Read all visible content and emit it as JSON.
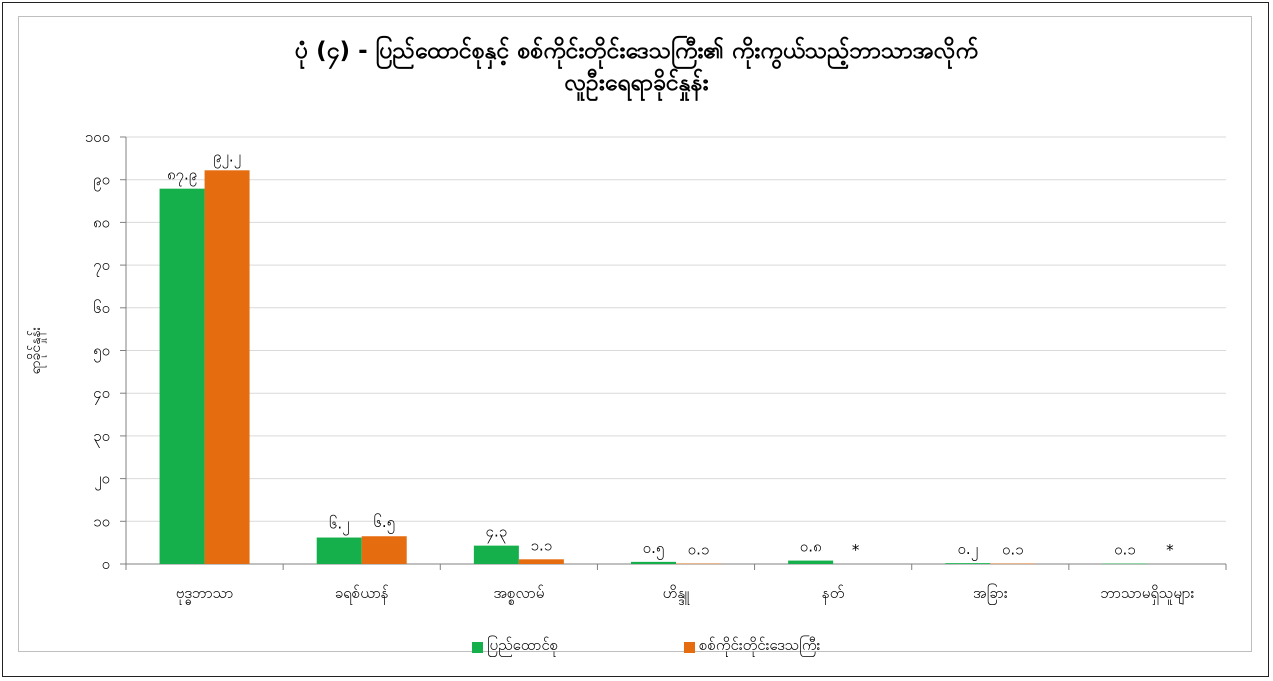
{
  "title_line1": "ပုံ (၄) - ပြည်ထောင်စုနှင့် စစ်ကိုင်းတိုင်းဒေသကြီး၏ ကိုးကွယ်သည့်ဘာသာအလိုက်",
  "title_line2": "လူဦးရေရာခိုင်နှုန်း",
  "colors": {
    "series1": "#15b04b",
    "series2": "#e56c0f",
    "grid": "#d9d9d9",
    "axis": "#808080"
  },
  "chart_data": {
    "type": "bar",
    "title": "ပုံ (၄) - ပြည်ထောင်စုနှင့် စစ်ကိုင်းတိုင်းဒေသကြီး၏ ကိုးကွယ်သည့်ဘာသာအလိုက် လူဦးရေရာခိုင်နှုန်း",
    "ylabel": "ရာခိုင်နှုန်း",
    "xlabel": "",
    "ylim": [
      0,
      100
    ],
    "yticks": [
      0,
      10,
      20,
      30,
      40,
      50,
      60,
      70,
      80,
      90,
      100
    ],
    "ytick_labels": [
      "၀",
      "၁၀",
      "၂၀",
      "၃၀",
      "၄၀",
      "၅၀",
      "၆၀",
      "၇၀",
      "၈၀",
      "၉၀",
      "၁၀၀"
    ],
    "categories": [
      "ဗုဒ္ဓဘာသာ",
      "ခရစ်ယာန်",
      "အစ္စလာမ်",
      "ဟိန္ဒူ",
      "နတ်",
      "အခြား",
      "ဘာသာမရှိသူများ"
    ],
    "grid": true,
    "legend": "bottom",
    "series": [
      {
        "name": "ပြည်ထောင်စု",
        "values": [
          87.9,
          6.2,
          4.3,
          0.5,
          0.8,
          0.2,
          0.1
        ],
        "labels": [
          "၈၇.၉",
          "၆.၂",
          "၄.၃",
          "၀.၅",
          "၀.၈",
          "၀.၂",
          "၀.၁"
        ]
      },
      {
        "name": "စစ်ကိုင်းတိုင်းဒေသကြီး",
        "values": [
          92.2,
          6.5,
          1.1,
          0.1,
          null,
          0.1,
          null
        ],
        "labels": [
          "၉၂.၂",
          "၆.၅",
          "၁.၁",
          "၀.၁",
          "*",
          "၀.၁",
          "*"
        ]
      }
    ]
  }
}
